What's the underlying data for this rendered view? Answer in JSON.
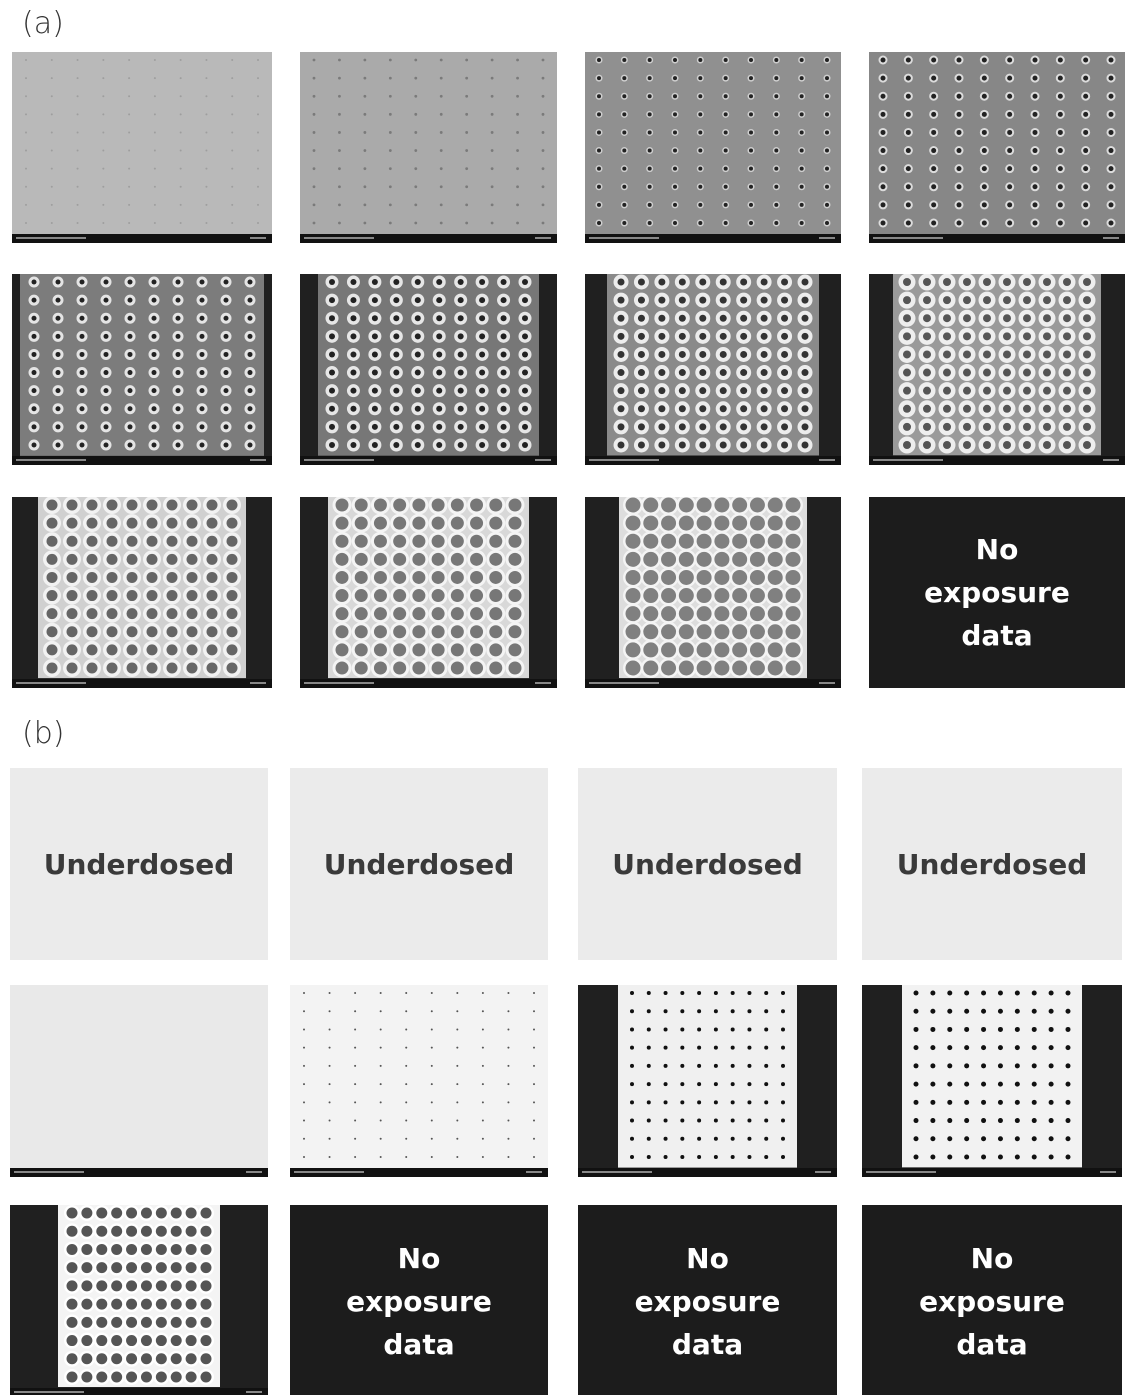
{
  "panels": [
    {
      "label": "(a)",
      "notes": [
        "No exposure data"
      ]
    },
    {
      "label": "(b)",
      "notes": [
        "Underdosed",
        "Underdosed",
        "Underdosed",
        "Underdosed",
        "No exposure data",
        "No exposure data",
        "No exposure data"
      ]
    }
  ]
}
